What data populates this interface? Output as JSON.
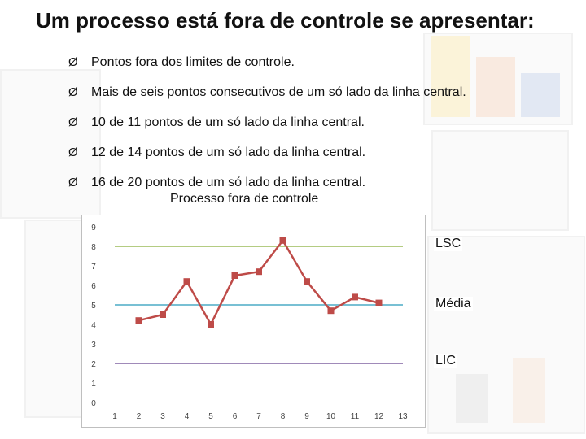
{
  "slide": {
    "title": "Um processo está fora de controle se apresentar:",
    "bullets": [
      "Pontos fora dos limites de controle.",
      "Mais de seis pontos consecutivos de um só lado da linha central.",
      "10 de 11 pontos de um só lado da linha central.",
      "12 de 14 pontos de um só lado da linha central.",
      "16 de 20 pontos de um só lado da linha central."
    ],
    "bullet_glyph": "Ø"
  },
  "chart_data": {
    "type": "line",
    "title": "Processo fora de controle",
    "x": [
      2,
      3,
      4,
      5,
      6,
      7,
      8,
      9,
      10,
      11,
      12
    ],
    "x_ticks": [
      1,
      2,
      3,
      4,
      5,
      6,
      7,
      8,
      9,
      10,
      11,
      12,
      13
    ],
    "x_tick_labels": [
      "1",
      "2",
      "3",
      "4",
      "5",
      "6",
      "7",
      "8",
      "9",
      "10",
      "11",
      "12",
      "13"
    ],
    "y_ticks": [
      0,
      1,
      2,
      3,
      4,
      5,
      6,
      7,
      8,
      9
    ],
    "xlim": [
      1,
      13
    ],
    "ylim": [
      0,
      9
    ],
    "series": [
      {
        "values": [
          4.2,
          4.5,
          6.2,
          4.0,
          6.5,
          6.7,
          8.3,
          6.2,
          4.7,
          5.4,
          5.1
        ],
        "color": "#be4b48"
      }
    ],
    "reference_lines": [
      {
        "name": "LSC",
        "value": 8,
        "color": "#9bbb59"
      },
      {
        "name": "Média",
        "value": 5,
        "color": "#4bacc6"
      },
      {
        "name": "LIC",
        "value": 2,
        "color": "#8064a2"
      }
    ],
    "grid": false
  }
}
